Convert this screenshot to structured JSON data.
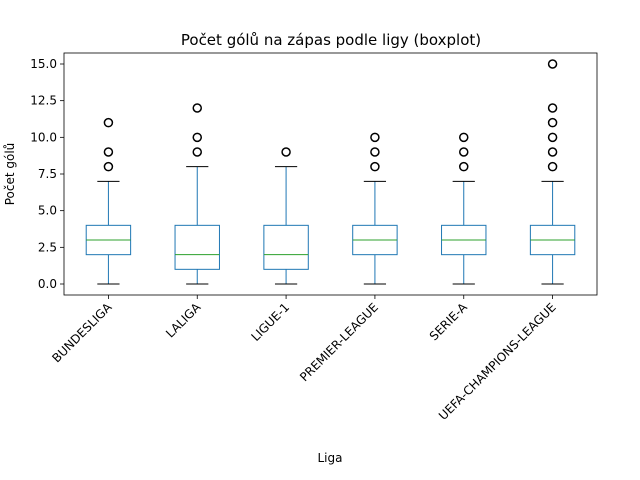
{
  "chart_data": {
    "type": "boxplot",
    "title": "Počet gólů na zápas podle ligy (boxplot)",
    "xlabel": "Liga",
    "ylabel": "Počet gólů",
    "ylim": [
      -0.75,
      15.75
    ],
    "yticks": [
      {
        "value": 0,
        "label": "0.0"
      },
      {
        "value": 2.5,
        "label": "2.5"
      },
      {
        "value": 5,
        "label": "5.0"
      },
      {
        "value": 7.5,
        "label": "7.5"
      },
      {
        "value": 10,
        "label": "10.0"
      },
      {
        "value": 12.5,
        "label": "12.5"
      },
      {
        "value": 15,
        "label": "15.0"
      }
    ],
    "grid": false,
    "legend": "none",
    "categories": [
      "BUNDESLIGA",
      "LALIGA",
      "LIGUE-1",
      "PREMIER-LEAGUE",
      "SERIE-A",
      "UEFA-CHAMPIONS-LEAGUE"
    ],
    "boxes": [
      {
        "whisker_low": 0,
        "q1": 2,
        "median": 3,
        "q3": 4,
        "whisker_high": 7,
        "outliers": [
          8,
          9,
          11
        ]
      },
      {
        "whisker_low": 0,
        "q1": 1,
        "median": 2,
        "q3": 4,
        "whisker_high": 8,
        "outliers": [
          9,
          10,
          12
        ]
      },
      {
        "whisker_low": 0,
        "q1": 1,
        "median": 2,
        "q3": 4,
        "whisker_high": 8,
        "outliers": [
          9
        ]
      },
      {
        "whisker_low": 0,
        "q1": 2,
        "median": 3,
        "q3": 4,
        "whisker_high": 7,
        "outliers": [
          8,
          9,
          10
        ]
      },
      {
        "whisker_low": 0,
        "q1": 2,
        "median": 3,
        "q3": 4,
        "whisker_high": 7,
        "outliers": [
          8,
          9,
          10
        ]
      },
      {
        "whisker_low": 0,
        "q1": 2,
        "median": 3,
        "q3": 4,
        "whisker_high": 7,
        "outliers": [
          8,
          9,
          10,
          11,
          12,
          15
        ]
      }
    ],
    "colors": {
      "box": "#1f77b4",
      "median": "#2ca02c",
      "whisker": "#1f77b4",
      "cap": "#000000",
      "outlier": "#000000",
      "axis": "#000000"
    }
  }
}
